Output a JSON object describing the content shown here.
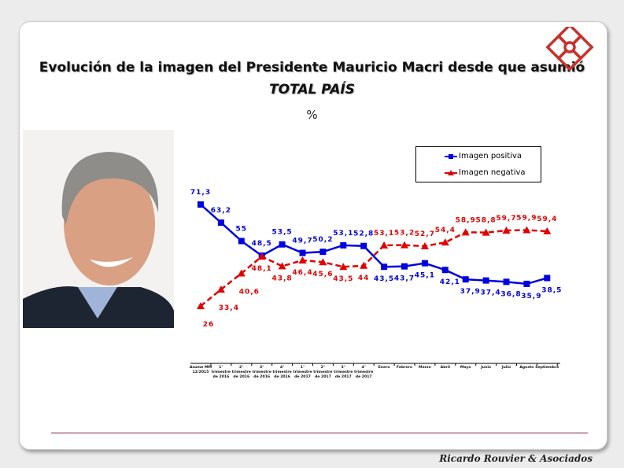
{
  "title": "Evolución de la imagen del Presidente Mauricio Macri desde que asumió",
  "subtitle": "TOTAL PAÍS",
  "unit": "%",
  "footer": "Ricardo Rouvier & Asociados",
  "chart_data": {
    "type": "line",
    "categories": [
      [
        "Asume MM",
        "12/2015"
      ],
      [
        "1°",
        "trimestre",
        "de 2016"
      ],
      [
        "2°",
        "trimestre",
        "de 2016"
      ],
      [
        "3°",
        "trimestre",
        "de 2016"
      ],
      [
        "4°",
        "trimestre",
        "de 2016"
      ],
      [
        "1°",
        "trimestre",
        "de 2017"
      ],
      [
        "2°",
        "trimestre",
        "de 2017"
      ],
      [
        "3°",
        "trimestre",
        "de 2017"
      ],
      [
        "4°",
        "trimestre",
        "de 2017"
      ],
      [
        "Enero"
      ],
      [
        "Febrero"
      ],
      [
        "Marzo"
      ],
      [
        "Abril"
      ],
      [
        "Mayo"
      ],
      [
        "Junio"
      ],
      [
        "Julio"
      ],
      [
        "Agosto"
      ],
      [
        "Septiembre"
      ]
    ],
    "series": [
      {
        "name": "Imagen positiva",
        "color": "#0000e0",
        "marker": "square",
        "values": [
          71.3,
          63.2,
          55,
          48.5,
          53.5,
          49.7,
          50.2,
          53.1,
          52.8,
          43.5,
          43.7,
          45.1,
          42.1,
          37.9,
          37.4,
          36.8,
          35.9,
          38.5
        ],
        "labels": [
          "71,3",
          "63,2",
          "55",
          "48,5",
          "53,5",
          "49,7",
          "50,2",
          "53,1",
          "52,8",
          "43,5",
          "43,7",
          "45,1",
          "42,1",
          "37,9",
          "37,4",
          "36,8",
          "35,9",
          "38,5"
        ]
      },
      {
        "name": "Imagen negativa",
        "color": "#e00000",
        "marker": "triangle",
        "dashed": true,
        "values": [
          26,
          33.4,
          40.6,
          48.1,
          43.8,
          46.4,
          45.6,
          43.5,
          44,
          53.1,
          53.2,
          52.7,
          54.4,
          58.9,
          58.8,
          59.7,
          59.9,
          59.4
        ],
        "labels": [
          "26",
          "33,4",
          "40,6",
          "48,1",
          "43,8",
          "46,4",
          "45,6",
          "43,5",
          "44",
          "53,1",
          "53,2",
          "52,7",
          "54,4",
          "58,9",
          "58,8",
          "59,7",
          "59,9",
          "59,4"
        ]
      }
    ],
    "legend": "top-right",
    "grid": false
  }
}
